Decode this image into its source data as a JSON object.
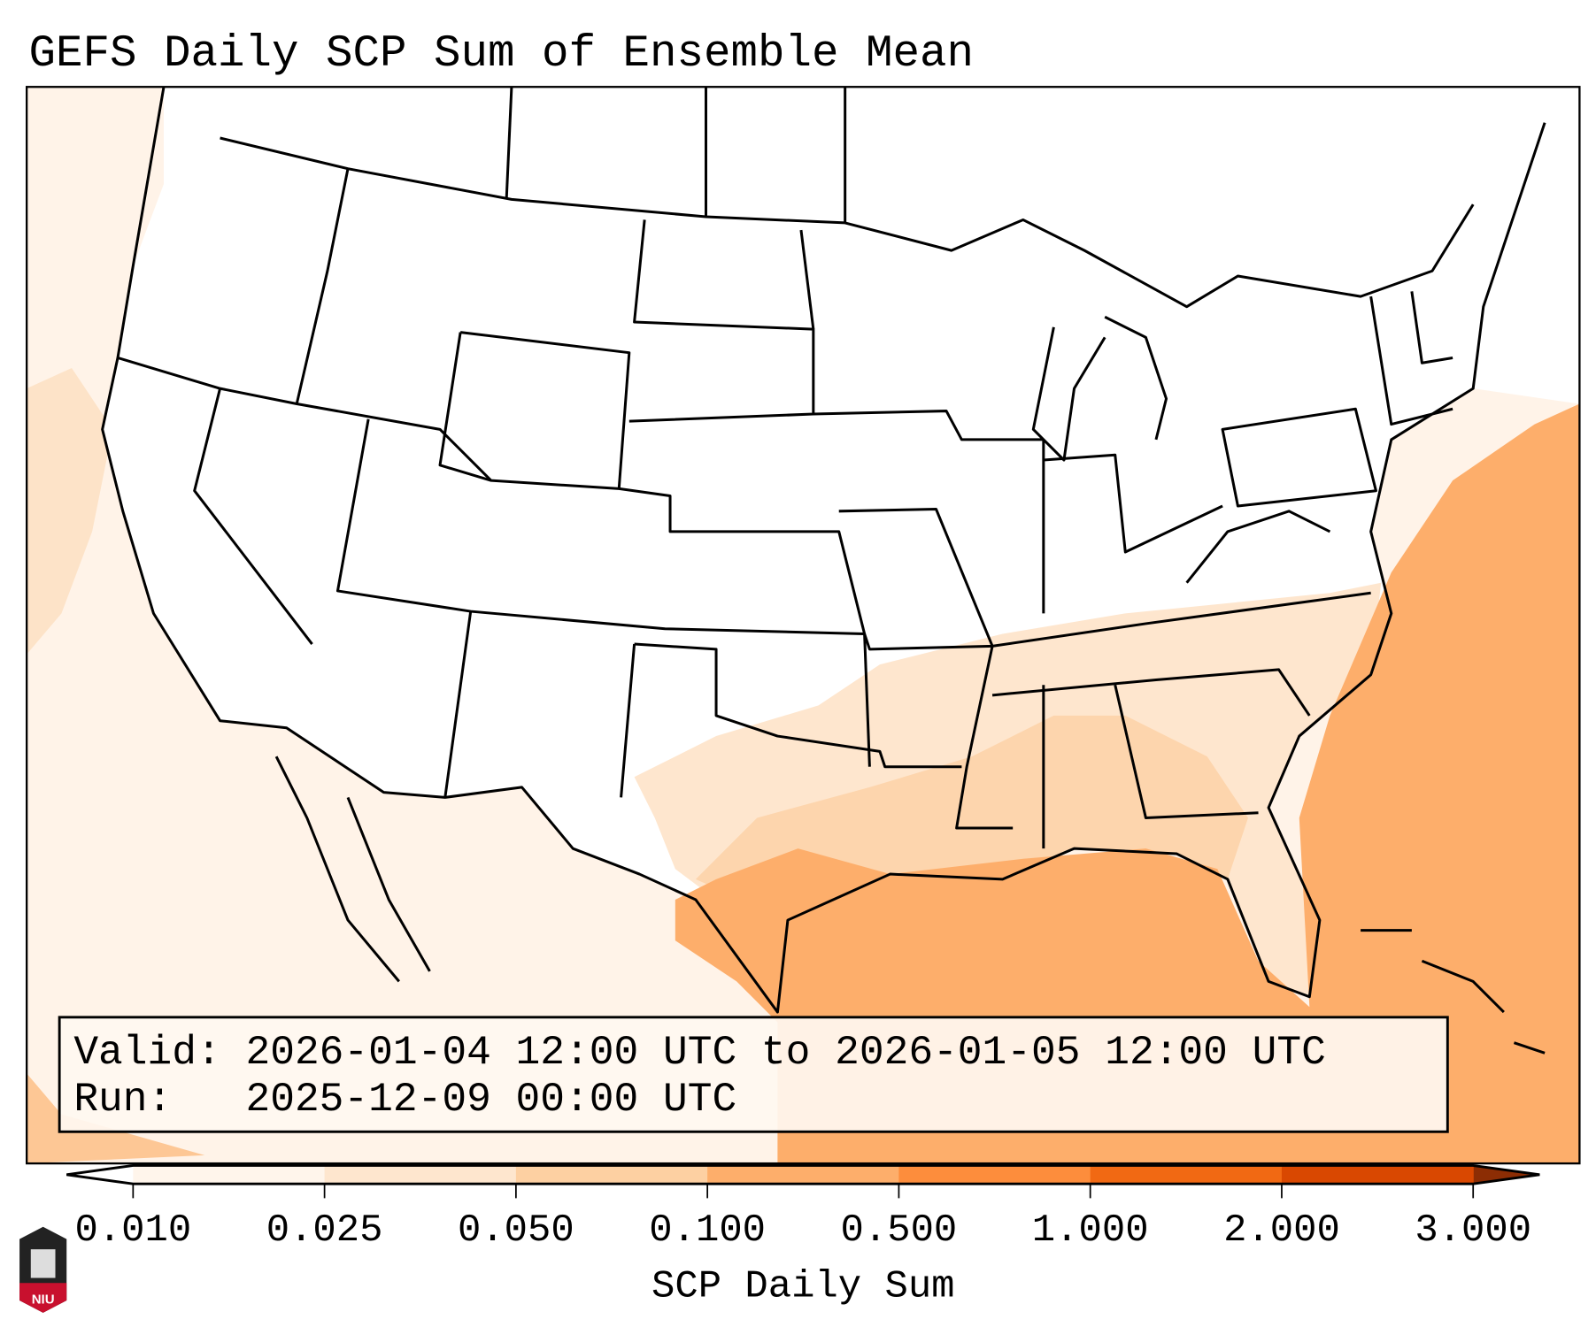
{
  "title": "GEFS Daily SCP Sum of Ensemble Mean",
  "info_box": {
    "valid_line": "Valid: 2026-01-04 12:00 UTC to 2026-01-05 12:00 UTC",
    "run_line": "Run:   2025-12-09 00:00 UTC"
  },
  "colorbar": {
    "label": "SCP Daily Sum",
    "ticks": [
      "0.010",
      "0.025",
      "0.050",
      "0.100",
      "0.500",
      "1.000",
      "2.000",
      "3.000"
    ],
    "colors": [
      "#fff5eb",
      "#fee6ce",
      "#fdd0a2",
      "#fdae6b",
      "#fd8d3c",
      "#f16913",
      "#d94801"
    ],
    "under_color": "#ffffff",
    "over_color": "#8c2d04"
  },
  "logo": {
    "text": "NIU",
    "color": "#c8102e"
  }
}
